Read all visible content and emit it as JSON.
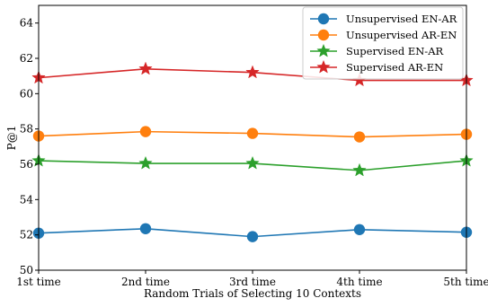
{
  "chart_data": {
    "type": "line",
    "title": "",
    "xlabel": "Random Trials of Selecting 10 Contexts",
    "ylabel": "P@1",
    "categories": [
      "1st time",
      "2nd time",
      "3rd time",
      "4th time",
      "5th time"
    ],
    "ylim": [
      50,
      65
    ],
    "yticks": [
      50,
      52,
      54,
      56,
      58,
      60,
      62,
      64
    ],
    "grid": false,
    "legend_position": "top-right",
    "series": [
      {
        "name": "Unsupervised EN-AR",
        "color": "#1f77b4",
        "marker": "circle",
        "values": [
          52.1,
          52.35,
          51.9,
          52.3,
          52.15
        ]
      },
      {
        "name": "Unsupervised AR-EN",
        "color": "#ff7f0e",
        "marker": "circle",
        "values": [
          57.6,
          57.85,
          57.75,
          57.55,
          57.7
        ]
      },
      {
        "name": "Supervised EN-AR",
        "color": "#2ca02c",
        "marker": "star",
        "values": [
          56.2,
          56.05,
          56.05,
          55.65,
          56.2
        ]
      },
      {
        "name": "Supervised AR-EN",
        "color": "#d62728",
        "marker": "star",
        "values": [
          60.9,
          61.4,
          61.2,
          60.75,
          60.75
        ]
      }
    ]
  }
}
